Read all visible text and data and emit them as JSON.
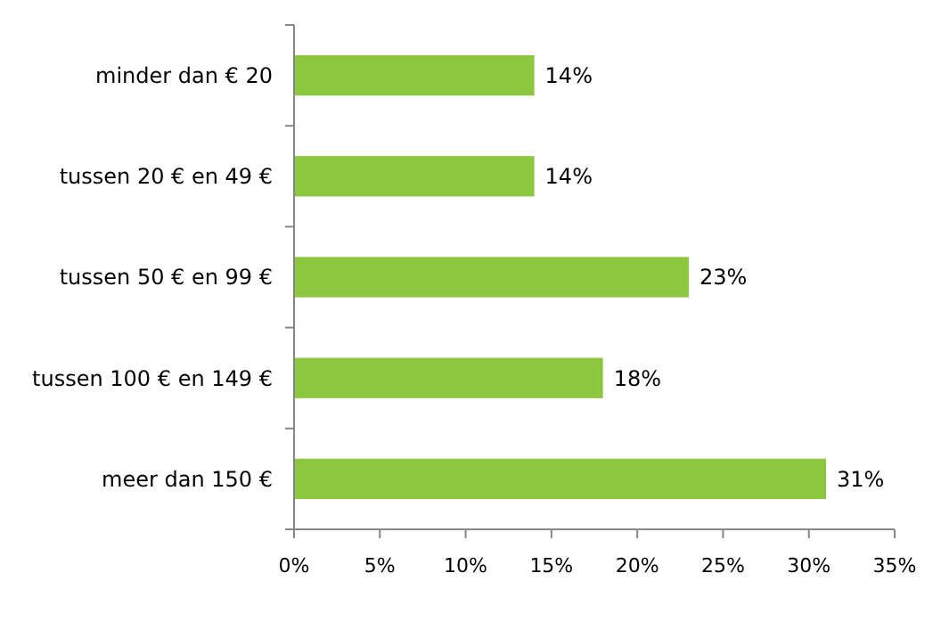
{
  "chart_data": {
    "type": "bar",
    "orientation": "horizontal",
    "categories": [
      "minder dan € 20",
      "tussen 20 € en 49 €",
      "tussen 50 € en 99 €",
      "tussen 100 € en 149 €",
      "meer dan 150 €"
    ],
    "values": [
      14,
      14,
      23,
      18,
      31
    ],
    "value_labels": [
      "14%",
      "14%",
      "23%",
      "18%",
      "31%"
    ],
    "color": "#8dc63f",
    "xlim": [
      0,
      35
    ],
    "xticks": [
      {
        "value": 0,
        "label": "0%"
      },
      {
        "value": 5,
        "label": "5%"
      },
      {
        "value": 10,
        "label": "10%"
      },
      {
        "value": 15,
        "label": "15%"
      },
      {
        "value": 20,
        "label": "20%"
      },
      {
        "value": 25,
        "label": "25%"
      },
      {
        "value": 30,
        "label": "30%"
      },
      {
        "value": 35,
        "label": "35%"
      }
    ],
    "grid": false
  }
}
